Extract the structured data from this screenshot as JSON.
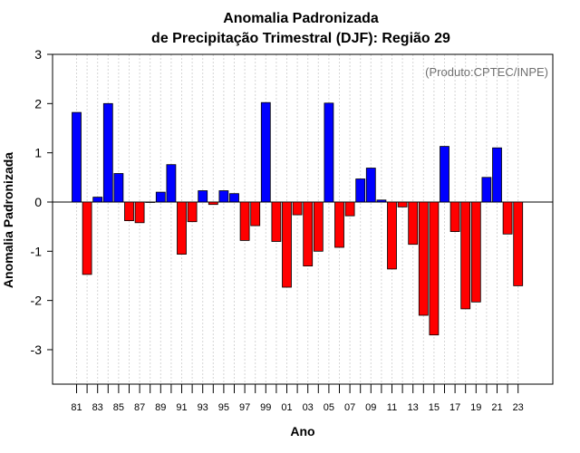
{
  "chart_data": {
    "type": "bar",
    "title_line1": "Anomalia Padronizada",
    "title_line2": "de Precipitação Trimestral (DJF): Região 29",
    "xlabel": "Ano",
    "ylabel": "Anomalia Padronizada",
    "credit": "(Produto:CPTEC/INPE)",
    "ylim": [
      -3.7,
      3.0
    ],
    "yticks": [
      3,
      2,
      1,
      0,
      -1,
      -2,
      -3
    ],
    "ytick_labels": [
      "3",
      "2",
      "1",
      "0",
      "-1",
      "-2",
      "-3"
    ],
    "xtick_labels": [
      "81",
      "83",
      "85",
      "87",
      "89",
      "91",
      "93",
      "95",
      "97",
      "99",
      "01",
      "03",
      "05",
      "07",
      "09",
      "11",
      "13",
      "15",
      "17",
      "19",
      "21",
      "23"
    ],
    "years": [
      1981,
      1982,
      1983,
      1984,
      1985,
      1986,
      1987,
      1988,
      1989,
      1990,
      1991,
      1992,
      1993,
      1994,
      1995,
      1996,
      1997,
      1998,
      1999,
      2000,
      2001,
      2002,
      2003,
      2004,
      2005,
      2006,
      2007,
      2008,
      2009,
      2010,
      2011,
      2012,
      2013,
      2014,
      2015,
      2016,
      2017,
      2018,
      2019,
      2020,
      2021,
      2022,
      2023
    ],
    "values": [
      1.82,
      -1.47,
      0.1,
      2.0,
      0.58,
      -0.38,
      -0.42,
      0.0,
      0.2,
      0.76,
      -1.06,
      -0.4,
      0.23,
      -0.05,
      0.23,
      0.17,
      -0.78,
      -0.48,
      2.02,
      -0.8,
      -1.73,
      -0.26,
      -1.3,
      -1.0,
      2.01,
      -0.92,
      -0.28,
      0.47,
      0.69,
      0.04,
      -1.36,
      -0.1,
      -0.86,
      -2.3,
      -2.7,
      1.13,
      -0.6,
      -2.17,
      -2.03,
      0.5,
      1.1,
      -0.65,
      -1.7
    ],
    "positive_color": "#0000ff",
    "negative_color": "#ff0000",
    "grid": true
  }
}
